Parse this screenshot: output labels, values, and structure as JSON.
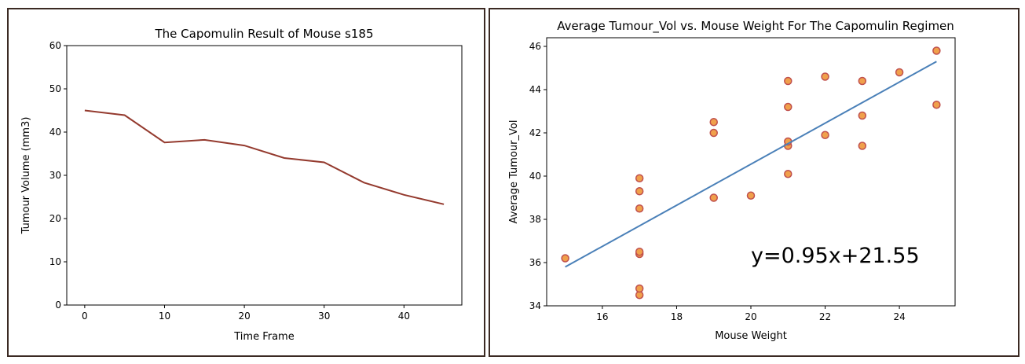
{
  "chart_data": [
    {
      "type": "line",
      "title": "The Capomulin Result of Mouse s185",
      "xlabel": "Time Frame",
      "ylabel": "Tumour Volume (mm3)",
      "xlim": [
        -2.25,
        47.25
      ],
      "ylim": [
        0,
        60
      ],
      "xticks": [
        0,
        10,
        20,
        30,
        40
      ],
      "yticks": [
        0,
        10,
        20,
        30,
        40,
        50,
        60
      ],
      "grid": false,
      "line_color": "#943a2e",
      "series": [
        {
          "x": [
            0,
            5,
            10,
            15,
            20,
            25,
            30,
            35,
            40,
            45
          ],
          "values": [
            45.0,
            43.9,
            37.6,
            38.2,
            36.9,
            34.0,
            33.0,
            28.3,
            25.5,
            23.3
          ]
        }
      ]
    },
    {
      "type": "scatter",
      "title": "Average Tumour_Vol vs. Mouse Weight For The Capomulin Regimen",
      "xlabel": "Mouse Weight",
      "ylabel": "Average Tumour_Vol",
      "xlim": [
        14.5,
        25.5
      ],
      "ylim": [
        34.0,
        46.4
      ],
      "xticks": [
        16,
        18,
        20,
        22,
        24
      ],
      "yticks": [
        34,
        36,
        38,
        40,
        42,
        44,
        46
      ],
      "grid": false,
      "marker_fill": "#f0a04b",
      "marker_edge": "#c0504d",
      "line_color": "#4a80b8",
      "points": [
        [
          15,
          36.2
        ],
        [
          17,
          34.5
        ],
        [
          17,
          34.8
        ],
        [
          17,
          36.4
        ],
        [
          17,
          36.5
        ],
        [
          17,
          38.5
        ],
        [
          17,
          39.3
        ],
        [
          17,
          39.9
        ],
        [
          19,
          39.0
        ],
        [
          19,
          42.0
        ],
        [
          19,
          42.5
        ],
        [
          20,
          39.1
        ],
        [
          21,
          40.1
        ],
        [
          21,
          41.4
        ],
        [
          21,
          41.6
        ],
        [
          21,
          43.2
        ],
        [
          21,
          44.4
        ],
        [
          22,
          41.9
        ],
        [
          22,
          44.6
        ],
        [
          23,
          41.4
        ],
        [
          23,
          42.8
        ],
        [
          23,
          44.4
        ],
        [
          24,
          44.8
        ],
        [
          25,
          43.3
        ],
        [
          25,
          45.8
        ]
      ],
      "regression": {
        "slope": 0.95,
        "intercept": 21.55,
        "x_range": [
          15,
          25
        ]
      },
      "annotation": "y=0.95x+21.55"
    }
  ]
}
